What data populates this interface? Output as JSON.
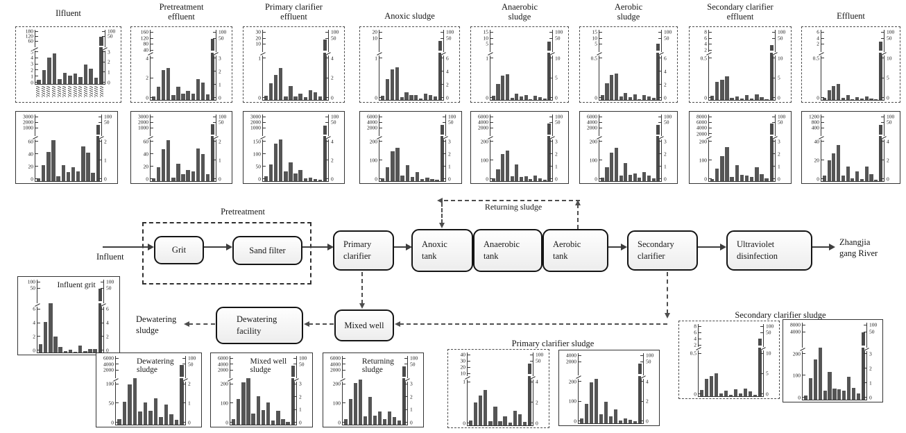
{
  "colors": {
    "bar": "#555555",
    "axis": "#333333",
    "arrow": "#3d3d3d",
    "node_border": "#141414"
  },
  "diagram": {
    "influent_label": "Influent",
    "pretreatment_label": "Pretreatment",
    "returning_sludge_label": "Returning sludge",
    "dewatering_sludge_label": "Dewatering\nsludge",
    "river_label": "Zhangjia\ngang River",
    "nodes": {
      "grit": "Grit",
      "sand_filter": "Sand filter",
      "primary_clarifier": "Primary\nclarifier",
      "anoxic_tank": "Anoxic\ntank",
      "anaerobic_tank": "Anaerobic\ntank",
      "aerobic_tank": "Aerobic\ntank",
      "secondary_clarifier": "Secondary\nclarifier",
      "ultraviolet": "Ultraviolet\ndisinfection",
      "mixed_well": "Mixed well",
      "dewatering_facility": "Dewatering\nfacility"
    }
  },
  "charts": {
    "row1": [
      {
        "title": "Ilfluent",
        "border": "dashed",
        "left_upper": [
          "180",
          "120",
          "60"
        ],
        "left_lower": [
          "5",
          "4",
          "3",
          "2",
          "1",
          "0"
        ],
        "right_upper": [
          "100",
          "50"
        ],
        "right_lower": [
          "3",
          "2",
          "1",
          "0"
        ],
        "bars": [
          8,
          27,
          52,
          60,
          10,
          22,
          16,
          20,
          14,
          38,
          30,
          12,
          93
        ],
        "x_tick_labels_note": "rotated compound-name tick labels (illegible)"
      },
      {
        "title": "Pretreatment\neffluent",
        "border": "dashed",
        "left_upper": [
          "160",
          "120",
          "80",
          "40"
        ],
        "left_lower": [
          "4",
          "2",
          "0"
        ],
        "right_upper": [
          "100",
          "50"
        ],
        "right_lower": [
          "3",
          "2",
          "1",
          "0"
        ],
        "bars": [
          5,
          20,
          45,
          48,
          7,
          20,
          9,
          14,
          10,
          32,
          26,
          8,
          93
        ]
      },
      {
        "title": "Primary clarifier\neffluent",
        "border": "dashed",
        "left_upper": [
          "30",
          "20",
          "10"
        ],
        "left_lower": [
          "1",
          "0"
        ],
        "right_upper": [
          "100",
          "50"
        ],
        "right_lower": [
          "4",
          "2",
          "0"
        ],
        "bars": [
          6,
          25,
          38,
          48,
          5,
          21,
          5,
          9,
          4,
          15,
          12,
          5,
          92
        ]
      },
      {
        "title": "Anoxic sludge",
        "border": "dashed",
        "left_upper": [
          "20",
          "10"
        ],
        "left_lower": [
          "1",
          "0"
        ],
        "right_upper": [
          "100",
          "50"
        ],
        "right_lower": [
          "6",
          "4",
          "2",
          "0"
        ],
        "bars": [
          6,
          32,
          46,
          49,
          4,
          12,
          7,
          7,
          2,
          10,
          7,
          5,
          90
        ]
      },
      {
        "title": "Anaerobic\nsludge",
        "border": "dashed",
        "left_upper": [
          "15",
          "10",
          "5"
        ],
        "left_lower": [
          "1",
          "0"
        ],
        "right_upper": [
          "100",
          "50"
        ],
        "right_lower": [
          "10",
          "5",
          "0"
        ],
        "bars": [
          6,
          24,
          37,
          39,
          3,
          10,
          5,
          7,
          1,
          6,
          4,
          2,
          88
        ]
      },
      {
        "title": "Aerobic\nsludge",
        "border": "dashed",
        "left_upper": [
          "15",
          "10",
          "5"
        ],
        "left_lower": [
          "0.5",
          "0"
        ],
        "right_upper": [
          "100",
          "50"
        ],
        "right_lower": [
          "6",
          "4",
          "2",
          "0"
        ],
        "bars": [
          7,
          25,
          38,
          40,
          5,
          11,
          4,
          8,
          1,
          7,
          5,
          3,
          85
        ]
      },
      {
        "title": "Secondary clarifier\neffluent",
        "border": "dashed",
        "left_upper": [
          "8",
          "6",
          "4",
          "2"
        ],
        "left_lower": [
          "0.5",
          "0"
        ],
        "right_upper": [
          "100",
          "50"
        ],
        "right_lower": [
          "10",
          "5",
          "0"
        ],
        "bars": [
          6,
          27,
          31,
          36,
          3,
          5,
          2,
          7,
          2,
          8,
          4,
          1,
          83
        ]
      },
      {
        "title": "Effluent",
        "border": "dashed",
        "left_upper": [
          "6",
          "4",
          "2"
        ],
        "left_lower": [
          "0.5",
          "0"
        ],
        "right_upper": [
          "100",
          "50"
        ],
        "right_lower": [
          "10",
          "5",
          "0"
        ],
        "bars": [
          3,
          15,
          21,
          24,
          3,
          7,
          1,
          4,
          2,
          5,
          2,
          1,
          88
        ]
      }
    ],
    "row2": [
      {
        "border": "solid",
        "left_upper": [
          "3000",
          "2000",
          "1000"
        ],
        "left_lower": [
          "60",
          "40",
          "20",
          "0"
        ],
        "right_upper": [
          "100",
          "50"
        ],
        "right_lower": [
          "2",
          "1",
          "0"
        ],
        "bars": [
          5,
          25,
          47,
          65,
          8,
          26,
          14,
          22,
          15,
          55,
          45,
          13,
          90
        ]
      },
      {
        "border": "solid",
        "left_upper": [
          "3000",
          "2000",
          "1000"
        ],
        "left_lower": [
          "60",
          "40",
          "20",
          "0"
        ],
        "right_upper": [
          "100",
          "50"
        ],
        "right_lower": [
          "2",
          "1",
          "0"
        ],
        "bars": [
          4,
          22,
          51,
          65,
          6,
          28,
          11,
          18,
          15,
          52,
          43,
          11,
          91
        ]
      },
      {
        "border": "solid",
        "left_upper": [
          "3000",
          "2000",
          "1000"
        ],
        "left_lower": [
          "150",
          "100",
          "50",
          "0"
        ],
        "right_upper": [
          "100",
          "50"
        ],
        "right_lower": [
          "4",
          "2",
          "0"
        ],
        "bars": [
          8,
          27,
          60,
          66,
          15,
          30,
          12,
          18,
          4,
          6,
          3,
          2,
          89
        ]
      },
      {
        "border": "solid",
        "left_upper": [
          "6000",
          "4000",
          "2000"
        ],
        "left_lower": [
          "200",
          "100",
          "0"
        ],
        "right_upper": [
          "100",
          "50"
        ],
        "right_lower": [
          "3",
          "2",
          "1",
          "0"
        ],
        "bars": [
          5,
          22,
          48,
          53,
          9,
          25,
          7,
          14,
          3,
          6,
          3,
          2,
          90
        ]
      },
      {
        "border": "solid",
        "left_upper": [
          "6000",
          "4000",
          "2000"
        ],
        "left_lower": [
          "200",
          "100",
          "0"
        ],
        "right_upper": [
          "100",
          "50"
        ],
        "right_lower": [
          "3",
          "2",
          "1",
          "0"
        ],
        "bars": [
          4,
          19,
          43,
          49,
          8,
          27,
          7,
          8,
          3,
          9,
          4,
          2,
          92
        ]
      },
      {
        "border": "solid",
        "left_upper": [
          "6000",
          "4000",
          "2000"
        ],
        "left_lower": [
          "200",
          "100",
          "0"
        ],
        "right_upper": [
          "100",
          "50"
        ],
        "right_lower": [
          "3",
          "2",
          "1",
          "0"
        ],
        "bars": [
          6,
          22,
          45,
          53,
          9,
          29,
          10,
          12,
          6,
          14,
          9,
          5,
          90
        ]
      },
      {
        "border": "solid",
        "left_upper": [
          "8000",
          "6000",
          "4000",
          "2000"
        ],
        "left_lower": [
          "200",
          "100",
          "0"
        ],
        "right_upper": [
          "100",
          "50"
        ],
        "right_lower": [
          "3",
          "2",
          "1",
          "0"
        ],
        "bars": [
          3,
          20,
          40,
          54,
          7,
          25,
          10,
          9,
          7,
          22,
          11,
          5,
          92
        ]
      },
      {
        "border": "solid",
        "left_upper": [
          "1200",
          "800",
          "400"
        ],
        "left_lower": [
          "40",
          "20",
          "0"
        ],
        "right_upper": [
          "100",
          "50"
        ],
        "right_lower": [
          "4",
          "2",
          "0"
        ],
        "bars": [
          9,
          33,
          44,
          58,
          9,
          23,
          5,
          16,
          3,
          23,
          11,
          2,
          90
        ]
      }
    ],
    "influent_grit": {
      "title_inside": "Influent grit",
      "border": "solid",
      "left_upper": [
        "100",
        "50"
      ],
      "left_lower": [
        "6",
        "4",
        "2",
        "0"
      ],
      "right_upper": [
        "100",
        "50"
      ],
      "right_lower": [
        "6",
        "4",
        "2",
        "0"
      ],
      "bars": [
        12,
        45,
        75,
        23,
        8,
        2,
        4,
        1,
        10,
        2,
        5,
        5,
        93
      ]
    },
    "bottom": [
      {
        "title_inside": "Dewatering\nsludge",
        "border": "solid",
        "left_upper": [
          "6000",
          "4000",
          "2000"
        ],
        "left_lower": [
          "100",
          "50",
          "0"
        ],
        "right_upper": [
          "100",
          "50"
        ],
        "right_lower": [
          "2",
          "1",
          "0"
        ],
        "bars": [
          9,
          35,
          62,
          72,
          20,
          34,
          22,
          41,
          12,
          31,
          16,
          8,
          92
        ]
      },
      {
        "title_inside": "Mixed well\nsludge",
        "border": "solid",
        "left_upper": [
          "6000",
          "4000",
          "2000"
        ],
        "left_lower": [
          "200",
          "100",
          "0"
        ],
        "right_upper": [
          "100",
          "50"
        ],
        "right_lower": [
          "3",
          "2",
          "1",
          "0"
        ],
        "bars": [
          9,
          40,
          66,
          72,
          17,
          44,
          23,
          34,
          7,
          21,
          9,
          4,
          91
        ]
      },
      {
        "title_inside": "Returning\nsludge",
        "border": "solid",
        "left_upper": [
          "6000",
          "4000",
          "2000"
        ],
        "left_lower": [
          "200",
          "100",
          "0"
        ],
        "right_upper": [
          "100",
          "50"
        ],
        "right_lower": [
          "3",
          "2",
          "1",
          "0"
        ],
        "bars": [
          9,
          40,
          64,
          70,
          13,
          43,
          14,
          20,
          9,
          20,
          12,
          7,
          90
        ]
      }
    ],
    "primary_clarifier_sludge": {
      "label": "Primary clarifier sludge",
      "charts": [
        {
          "border": "dashed",
          "left_upper": [
            "40",
            "30",
            "20",
            "10"
          ],
          "left_lower": [
            "1",
            "0"
          ],
          "right_upper": [
            "100",
            "50"
          ],
          "right_lower": [
            "4",
            "2",
            "0"
          ],
          "bars": [
            7,
            33,
            44,
            52,
            6,
            27,
            6,
            13,
            4,
            21,
            16,
            5,
            90
          ]
        },
        {
          "border": "solid",
          "left_upper": [
            "4000",
            "2000"
          ],
          "left_lower": [
            "200",
            "100",
            "0"
          ],
          "right_upper": [
            "100",
            "50"
          ],
          "right_lower": [
            "4",
            "2",
            "0"
          ],
          "bars": [
            7,
            30,
            62,
            67,
            14,
            33,
            11,
            21,
            4,
            7,
            5,
            3,
            91
          ]
        }
      ]
    },
    "secondary_clarifier_sludge": {
      "label": "Secondary clarifier sludge",
      "charts": [
        {
          "border": "dashed",
          "left_upper": [
            "8",
            "6",
            "4",
            "2"
          ],
          "left_lower": [
            "0.5",
            "0"
          ],
          "right_upper": [
            "100",
            "50"
          ],
          "right_lower": [
            "10",
            "5",
            "0"
          ],
          "bars": [
            9,
            26,
            30,
            34,
            4,
            8,
            2,
            10,
            4,
            11,
            7,
            2,
            85
          ]
        },
        {
          "border": "solid",
          "left_upper": [
            "8000",
            "4000"
          ],
          "left_lower": [
            "200",
            "100",
            "0"
          ],
          "right_upper": [
            "100",
            "50"
          ],
          "right_lower": [
            "3",
            "2",
            "1",
            "0"
          ],
          "bars": [
            6,
            30,
            56,
            72,
            12,
            38,
            15,
            14,
            12,
            32,
            16,
            9,
            93
          ]
        }
      ]
    }
  }
}
